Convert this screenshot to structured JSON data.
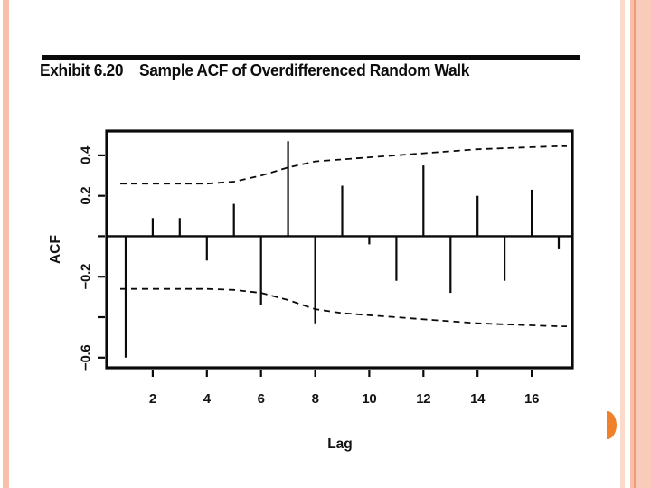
{
  "slide": {
    "decorations": {
      "left_stripe_color": "#f6c0ab",
      "right_stripe_light": "#fbd9cb",
      "right_stripe_mid": "#f6c0ab",
      "right_stripe_dark": "#ec9e7c",
      "right_stripe_wide": "#f9cbb9",
      "semicircle_color": "#f0802a"
    }
  },
  "title_bar": {
    "exhibit_label": "Exhibit 6.20",
    "title": "Sample ACF of Overdifferenced Random Walk",
    "rule_color": "#0a0a0a"
  },
  "chart_data": {
    "type": "stem",
    "title": "Sample ACF of Overdifferenced Random Walk",
    "xlabel": "Lag",
    "ylabel": "ACF",
    "x": [
      1,
      2,
      3,
      4,
      5,
      6,
      7,
      8,
      9,
      10,
      11,
      12,
      13,
      14,
      15,
      16,
      17
    ],
    "acf": [
      -0.6,
      0.09,
      0.09,
      -0.12,
      0.16,
      -0.34,
      0.47,
      -0.43,
      0.25,
      -0.04,
      -0.22,
      0.35,
      -0.28,
      0.2,
      -0.22,
      0.23,
      -0.06
    ],
    "conf_upper": [
      0.26,
      0.26,
      0.26,
      0.26,
      0.27,
      0.3,
      0.34,
      0.37,
      0.38,
      0.39,
      0.4,
      0.41,
      0.42,
      0.43,
      0.435,
      0.44,
      0.445
    ],
    "conf_lower": [
      -0.26,
      -0.26,
      -0.26,
      -0.26,
      -0.265,
      -0.28,
      -0.315,
      -0.36,
      -0.38,
      -0.39,
      -0.4,
      -0.41,
      -0.42,
      -0.43,
      -0.435,
      -0.44,
      -0.445
    ],
    "xticks": [
      2,
      4,
      6,
      8,
      10,
      12,
      14,
      16
    ],
    "xtick_labels": [
      "2",
      "4",
      "6",
      "8",
      "10",
      "12",
      "14",
      "16"
    ],
    "yticks": [
      0.4,
      0.2,
      0.0,
      -0.2,
      -0.4,
      -0.6
    ],
    "ytick_labels": [
      "0.4",
      "0.2",
      "",
      "−0.2",
      "",
      "−0.6"
    ],
    "xlim": [
      0.3,
      17.5
    ],
    "ylim": [
      -0.65,
      0.52
    ],
    "grid": false,
    "legend": "none",
    "band_style": "dashed",
    "line_color": "#0a0a0a"
  }
}
